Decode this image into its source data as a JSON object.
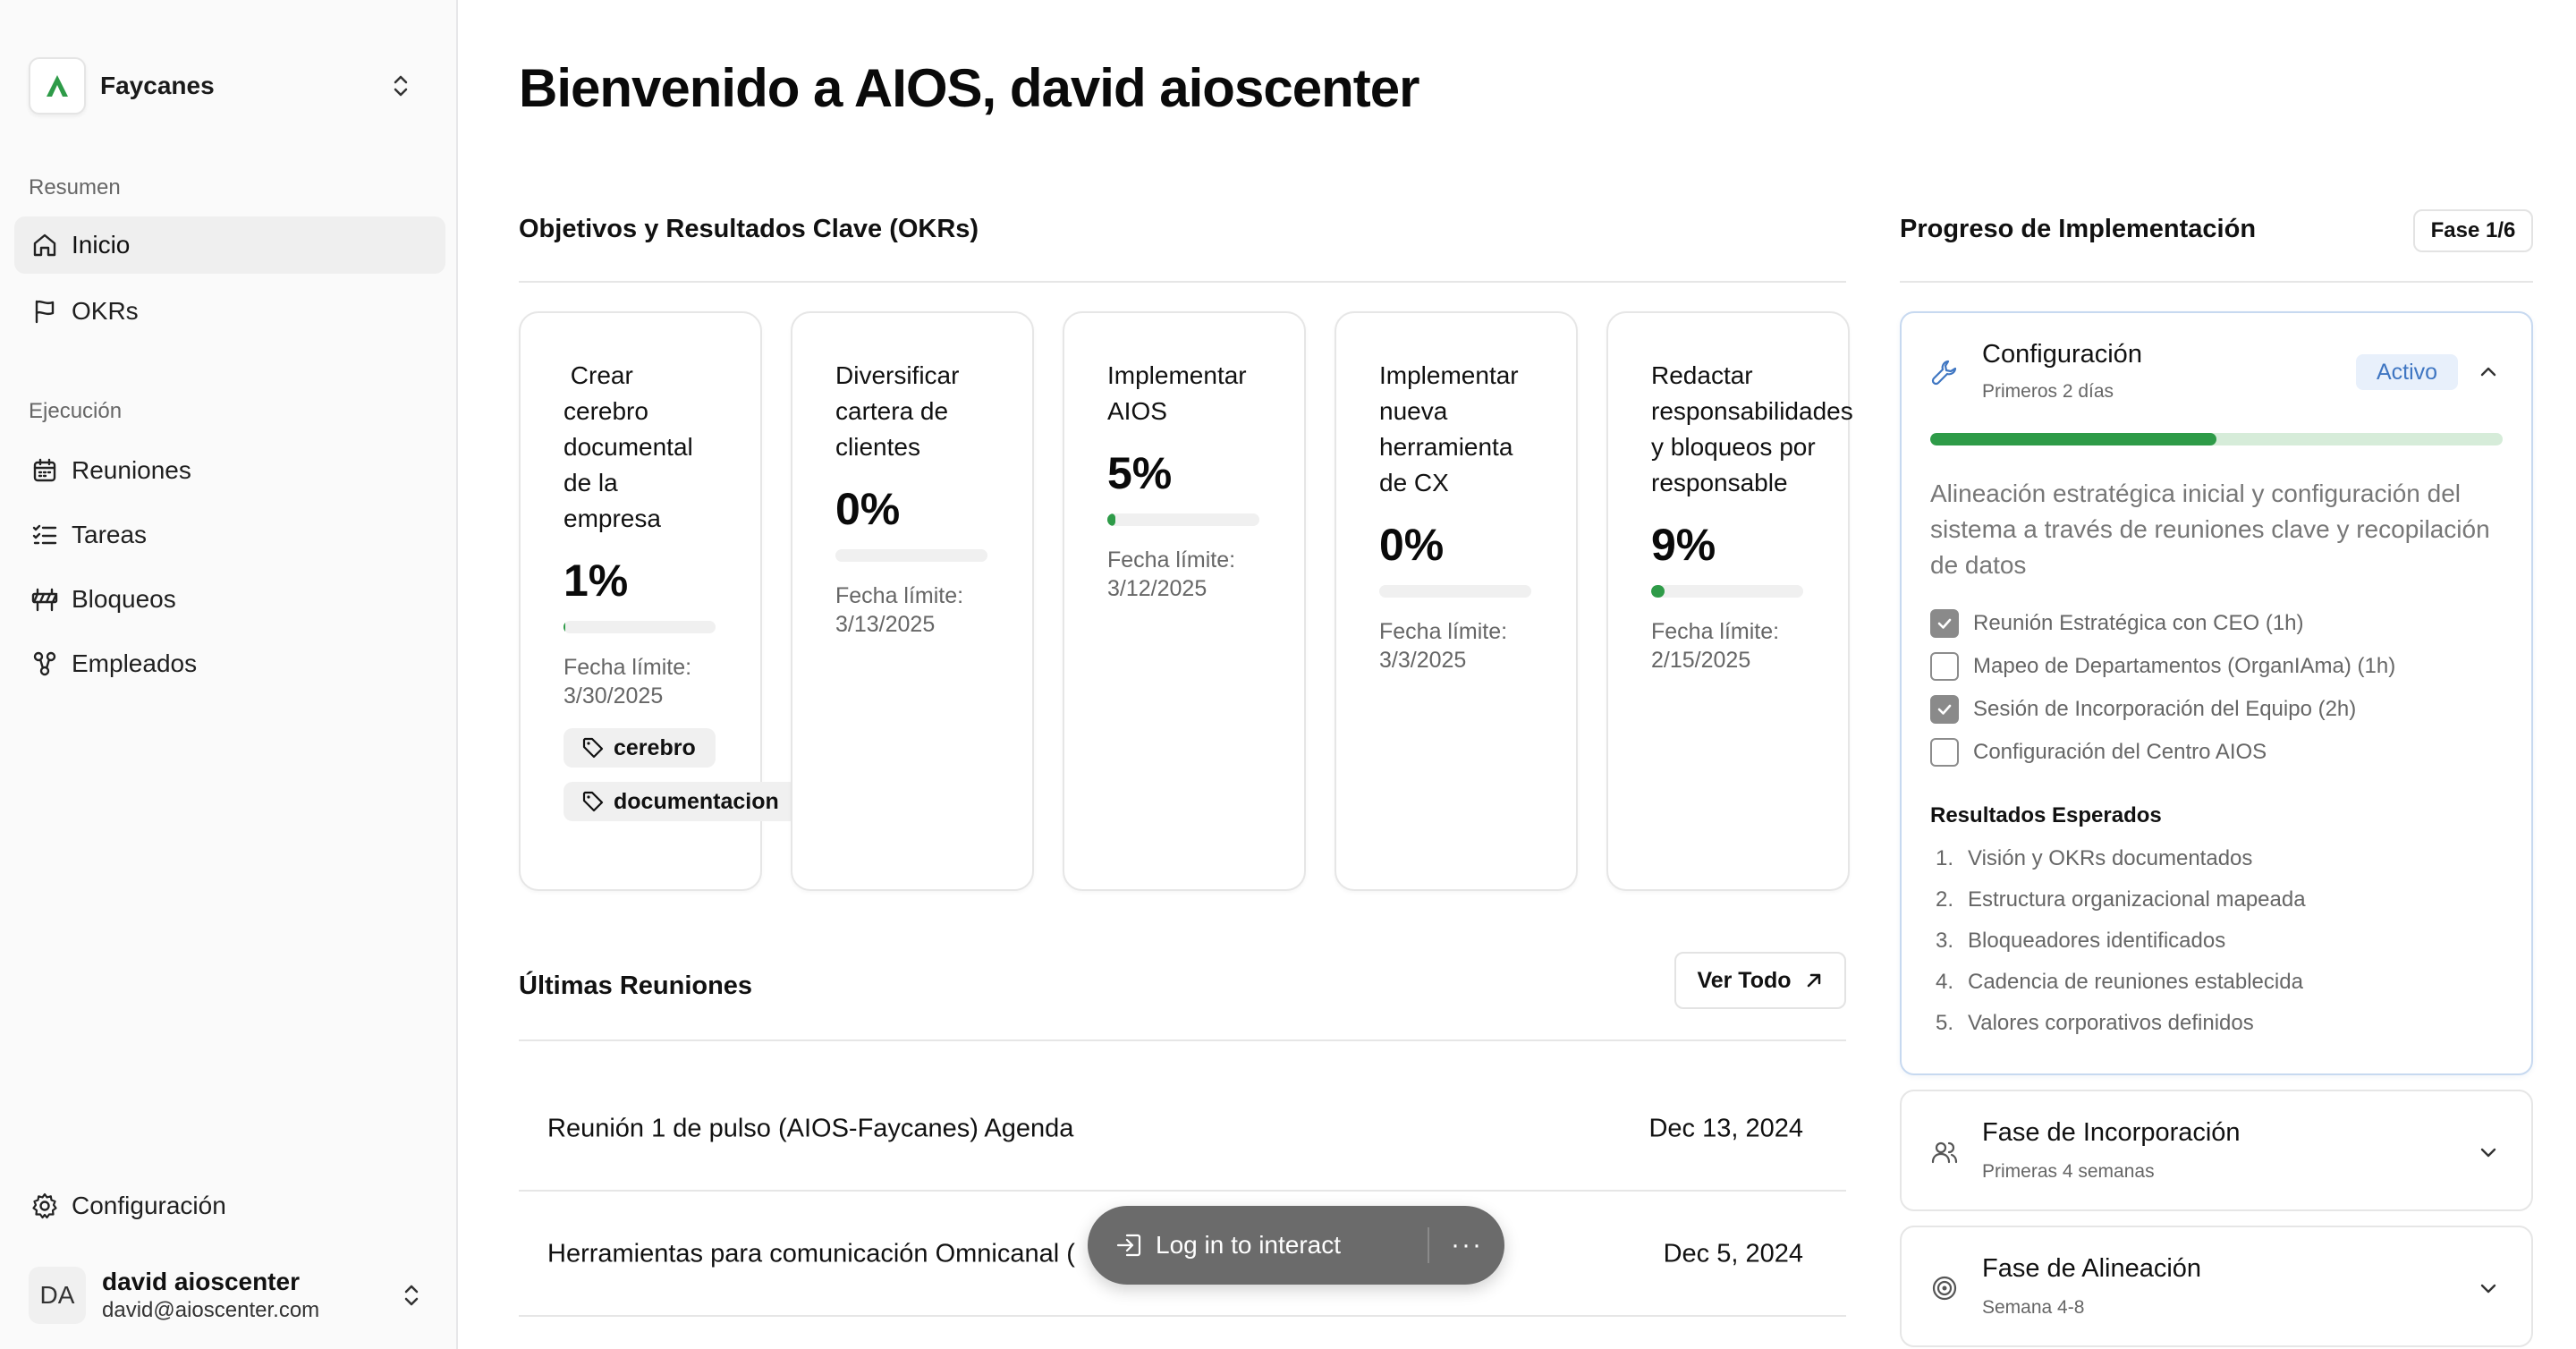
{
  "sidebar": {
    "workspace": "Faycanes",
    "sections": [
      {
        "label": "Resumen"
      },
      {
        "label": "Ejecución"
      }
    ],
    "items": [
      {
        "label": "Inicio"
      },
      {
        "label": "OKRs"
      },
      {
        "label": "Reuniones"
      },
      {
        "label": "Tareas"
      },
      {
        "label": "Bloqueos"
      },
      {
        "label": "Empleados"
      }
    ],
    "settings": "Configuración",
    "user": {
      "initials": "DA",
      "name": "david aioscenter",
      "email": "david@aioscenter.com"
    }
  },
  "main": {
    "title": "Bienvenido a AIOS, david aioscenter",
    "okrs_title": "Objetivos y Resultados Clave (OKRs)",
    "okrs": [
      {
        "title": " Crear cerebro documental de la empresa",
        "percent": "1%",
        "progress": 1,
        "deadline": "Fecha límite: 3/30/2025",
        "tags": [
          "cerebro",
          "documentacion"
        ]
      },
      {
        "title": "Diversificar cartera de clientes",
        "percent": "0%",
        "progress": 0,
        "deadline": "Fecha límite: 3/13/2025"
      },
      {
        "title": "Implementar AIOS",
        "percent": "5%",
        "progress": 5,
        "deadline": "Fecha límite: 3/12/2025"
      },
      {
        "title": "Implementar nueva herramienta de CX",
        "percent": "0%",
        "progress": 0,
        "deadline": "Fecha límite: 3/3/2025"
      },
      {
        "title": "Redactar responsabilidades y bloqueos por responsable",
        "percent": "9%",
        "progress": 9,
        "deadline": "Fecha límite: 2/15/2025"
      }
    ],
    "meetings_title": "Últimas Reuniones",
    "view_all": "Ver Todo",
    "meetings": [
      {
        "title": "Reunión 1 de pulso (AIOS-Faycanes) Agenda",
        "date": "Dec 13, 2024"
      },
      {
        "title": "Herramientas para comunicación Omnicanal (",
        "date": "Dec 5, 2024"
      }
    ]
  },
  "toast": {
    "login": "Log in to interact",
    "more": "···"
  },
  "implementation": {
    "title": "Progreso de Implementación",
    "phase_badge": "Fase 1/6",
    "active_phase": {
      "name": "Configuración",
      "subtitle": "Primeros 2 días",
      "status": "Activo",
      "progress": 50,
      "description": "Alineación estratégica inicial y configuración del sistema a través de reuniones clave y recopilación de datos",
      "tasks": [
        {
          "label": "Reunión Estratégica con CEO (1h)",
          "done": true
        },
        {
          "label": "Mapeo de Departamentos (OrganIAma) (1h)",
          "done": false
        },
        {
          "label": "Sesión de Incorporación del Equipo (2h)",
          "done": true
        },
        {
          "label": "Configuración del Centro AIOS",
          "done": false
        }
      ],
      "results_title": "Resultados Esperados",
      "results": [
        "Visión y OKRs documentados",
        "Estructura organizacional mapeada",
        "Bloqueadores identificados",
        "Cadencia de reuniones establecida",
        "Valores corporativos definidos"
      ]
    },
    "phases": [
      {
        "name": "Fase de Incorporación",
        "subtitle": "Primeras 4 semanas"
      },
      {
        "name": "Fase de Alineación",
        "subtitle": "Semana 4-8"
      }
    ]
  }
}
